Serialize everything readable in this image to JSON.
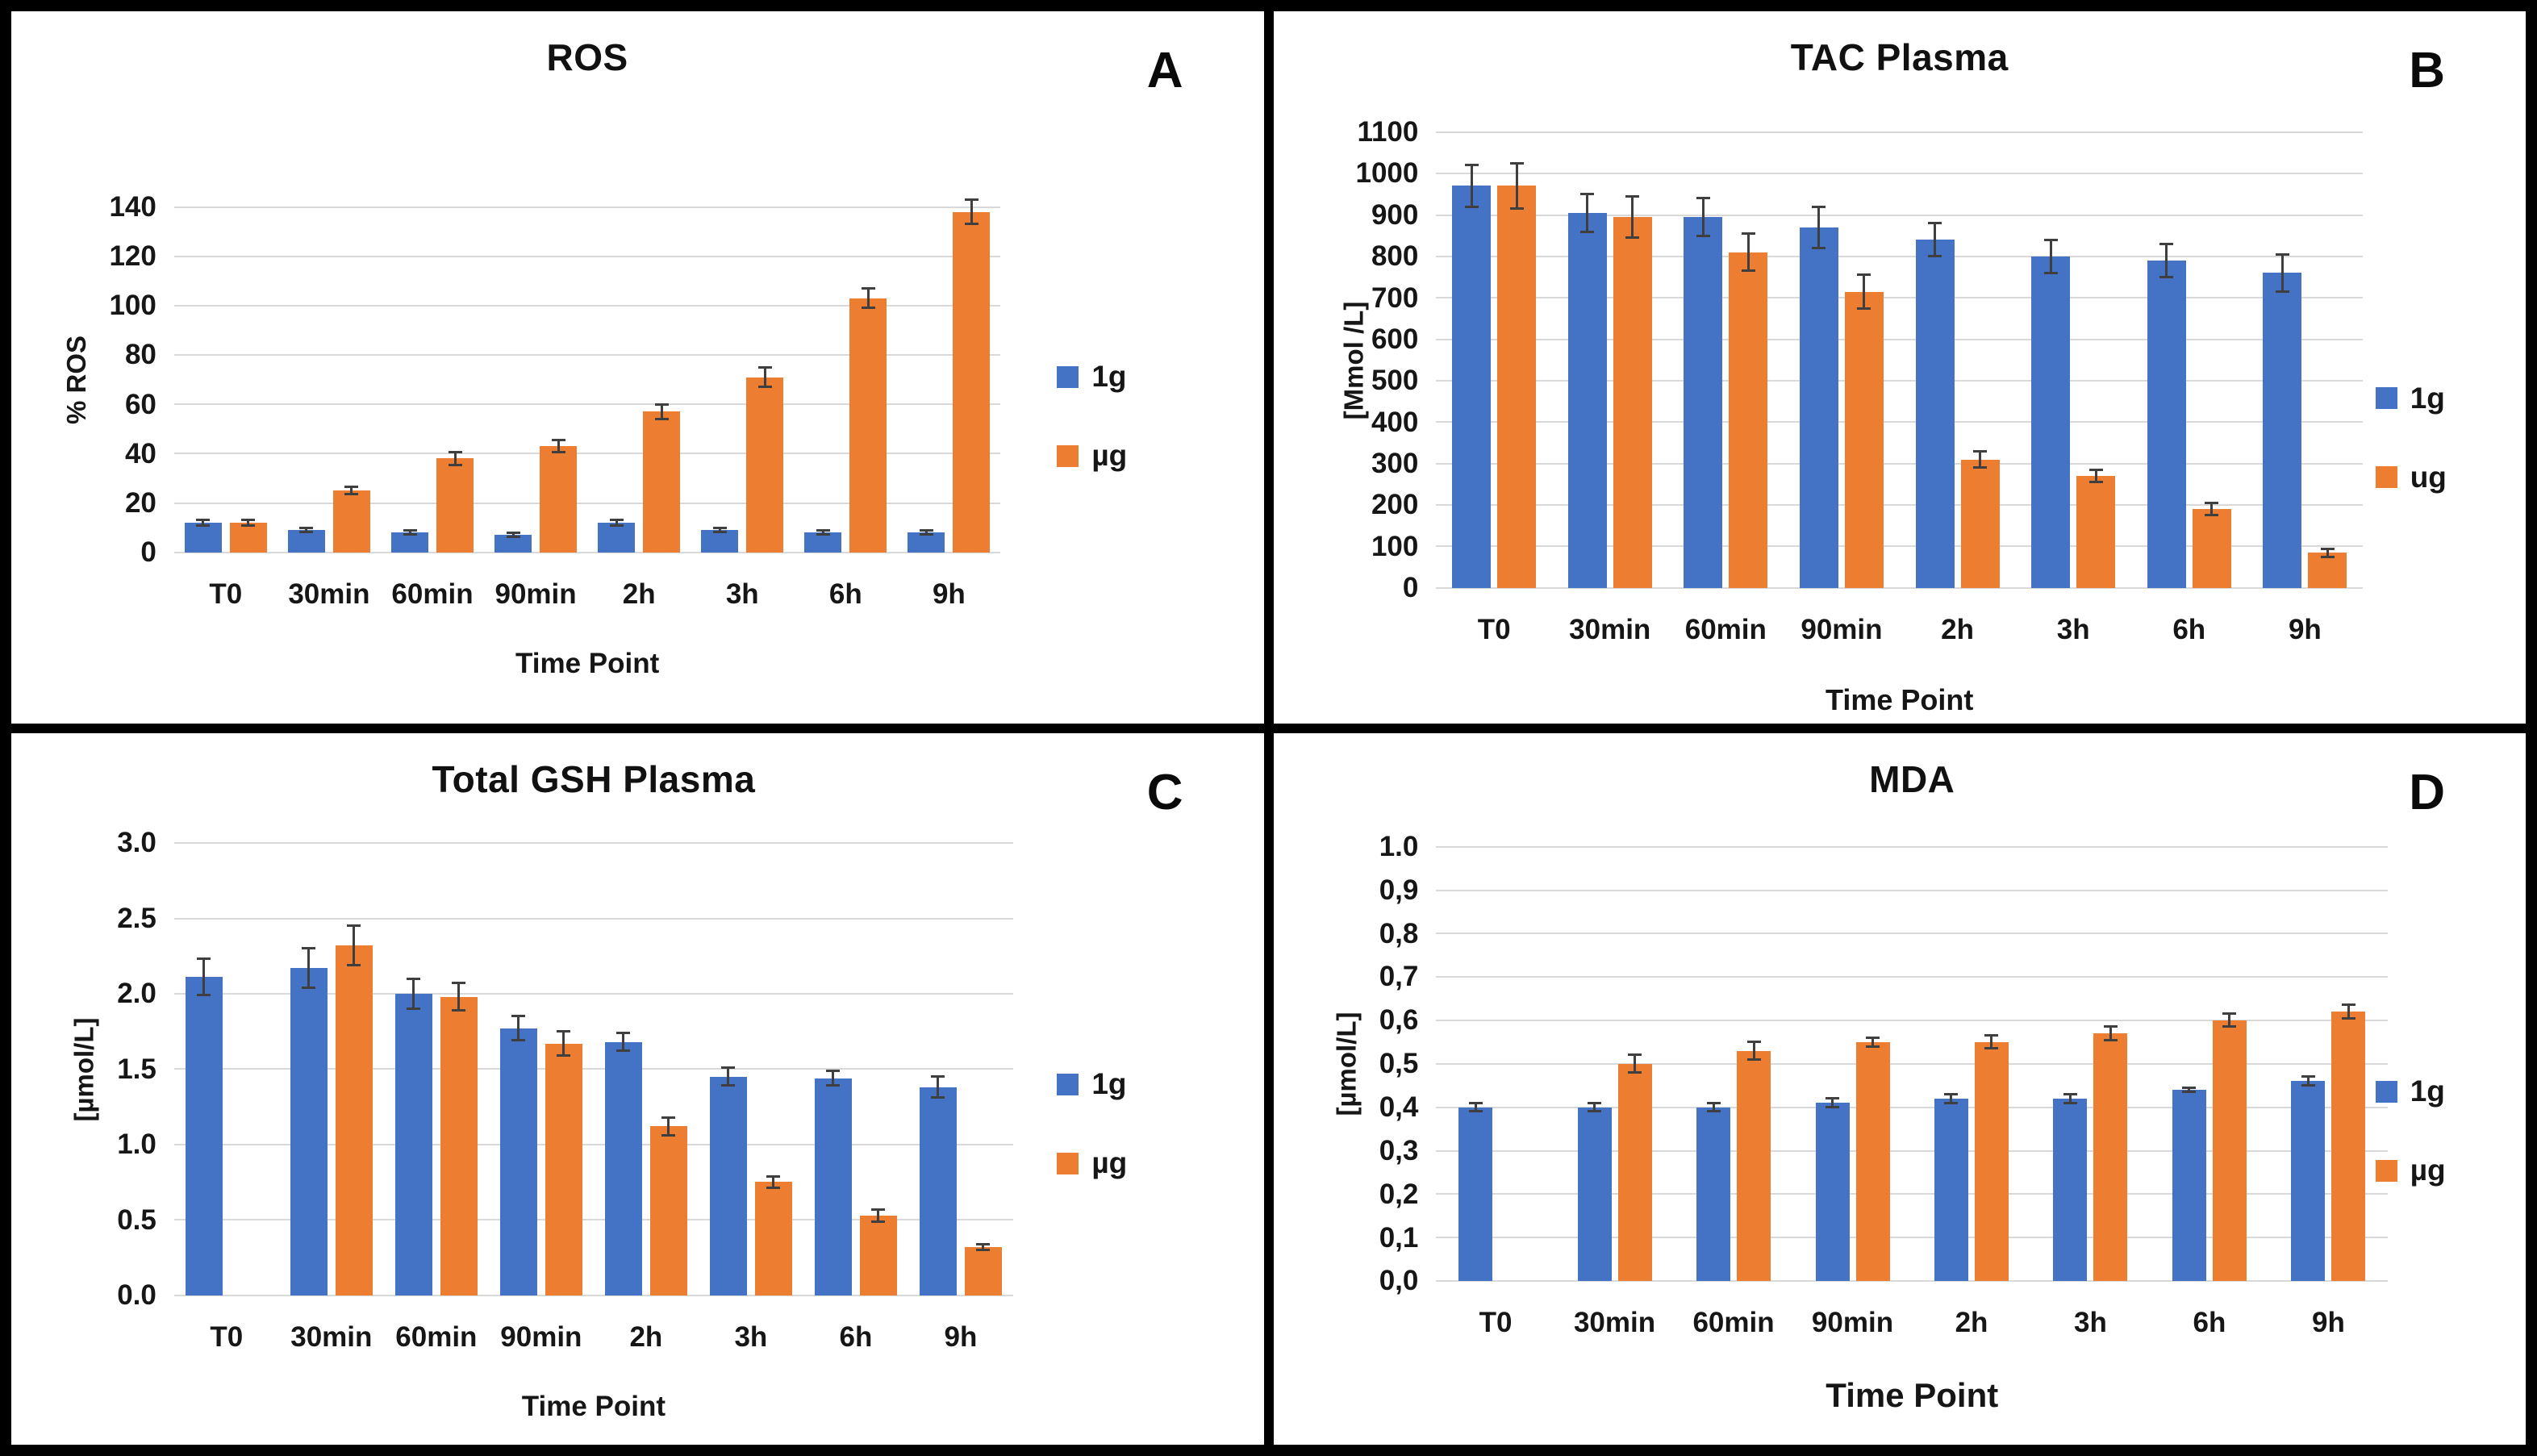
{
  "colors": {
    "series_1g": "#4472C4",
    "series_ug": "#ED7D31",
    "gridline": "#D9D9D9",
    "error_bar": "#3F3F3F",
    "frame": "#000000",
    "panel_background": "#FFFFFF"
  },
  "chart_data": [
    {
      "type": "bar",
      "panel_letter": "A",
      "title": "ROS",
      "ylabel": "% ROS",
      "xlabel": "Time Point",
      "categories": [
        "T0",
        "30min",
        "60min",
        "90min",
        "2h",
        "3h",
        "6h",
        "9h"
      ],
      "ylim": [
        0,
        140
      ],
      "y_ticks": [
        "140",
        "120",
        "100",
        "80",
        "60",
        "40",
        "20",
        "0"
      ],
      "grid": true,
      "legend_position": "right",
      "series": [
        {
          "name": "1g",
          "color": "#4472C4",
          "values": [
            12,
            9,
            8,
            7,
            12,
            9,
            8,
            8
          ],
          "errors": [
            1,
            0.8,
            0.8,
            0.8,
            1,
            0.8,
            0.8,
            0.8
          ]
        },
        {
          "name": "µg",
          "color": "#ED7D31",
          "values": [
            12,
            25,
            38,
            43,
            57,
            71,
            103,
            138
          ],
          "errors": [
            1,
            1.5,
            2.5,
            2.5,
            3,
            4,
            4,
            5
          ]
        }
      ]
    },
    {
      "type": "bar",
      "panel_letter": "B",
      "title": "TAC Plasma",
      "ylabel": "[Mmol /L]",
      "xlabel": "Time Point",
      "categories": [
        "T0",
        "30min",
        "60min",
        "90min",
        "2h",
        "3h",
        "6h",
        "9h"
      ],
      "ylim": [
        0,
        1100
      ],
      "y_ticks": [
        "1100",
        "1000",
        "900",
        "800",
        "700",
        "600",
        "500",
        "400",
        "300",
        "200",
        "100",
        "0"
      ],
      "grid": true,
      "legend_position": "right",
      "series": [
        {
          "name": "1g",
          "color": "#4472C4",
          "values": [
            970,
            905,
            895,
            870,
            840,
            800,
            790,
            760
          ],
          "errors": [
            50,
            45,
            45,
            50,
            40,
            40,
            40,
            45
          ]
        },
        {
          "name": "ug",
          "color": "#ED7D31",
          "values": [
            970,
            895,
            810,
            715,
            310,
            270,
            190,
            85
          ],
          "errors": [
            55,
            50,
            45,
            40,
            20,
            15,
            15,
            10
          ]
        }
      ]
    },
    {
      "type": "bar",
      "panel_letter": "C",
      "title": "Total GSH Plasma",
      "ylabel": "[µmol/L]",
      "xlabel": "Time Point",
      "categories": [
        "T0",
        "30min",
        "60min",
        "90min",
        "2h",
        "3h",
        "6h",
        "9h"
      ],
      "ylim": [
        0,
        3
      ],
      "y_ticks": [
        "3.0",
        "2.5",
        "2.0",
        "1.5",
        "1.0",
        "0.5",
        "0.0"
      ],
      "grid": true,
      "legend_position": "right",
      "series": [
        {
          "name": "1g",
          "color": "#4472C4",
          "values": [
            2.11,
            2.17,
            2.0,
            1.77,
            1.68,
            1.45,
            1.44,
            1.38
          ],
          "errors": [
            0.12,
            0.13,
            0.1,
            0.08,
            0.06,
            0.06,
            0.05,
            0.07
          ]
        },
        {
          "name": "µg",
          "color": "#ED7D31",
          "values": [
            null,
            2.32,
            1.98,
            1.67,
            1.12,
            0.75,
            0.53,
            0.32
          ],
          "errors": [
            null,
            0.13,
            0.09,
            0.08,
            0.06,
            0.04,
            0.04,
            0.02
          ]
        }
      ]
    },
    {
      "type": "bar",
      "panel_letter": "D",
      "title": "MDA",
      "ylabel": "[µmol/L]",
      "xlabel": "Time Point",
      "categories": [
        "T0",
        "30min",
        "60min",
        "90min",
        "2h",
        "3h",
        "6h",
        "9h"
      ],
      "ylim": [
        0,
        1
      ],
      "y_ticks": [
        "1.0",
        "0,9",
        "0,8",
        "0,7",
        "0,6",
        "0,5",
        "0,4",
        "0,3",
        "0,2",
        "0,1",
        "0,0"
      ],
      "grid": true,
      "legend_position": "right",
      "series": [
        {
          "name": "1g",
          "color": "#4472C4",
          "values": [
            0.4,
            0.4,
            0.4,
            0.41,
            0.42,
            0.42,
            0.44,
            0.46
          ],
          "errors": [
            0.01,
            0.01,
            0.01,
            0.01,
            0.01,
            0.01,
            0.005,
            0.01
          ]
        },
        {
          "name": "µg",
          "color": "#ED7D31",
          "values": [
            null,
            0.5,
            0.53,
            0.55,
            0.55,
            0.57,
            0.6,
            0.62
          ],
          "errors": [
            null,
            0.02,
            0.02,
            0.01,
            0.015,
            0.015,
            0.015,
            0.015
          ]
        }
      ]
    }
  ]
}
